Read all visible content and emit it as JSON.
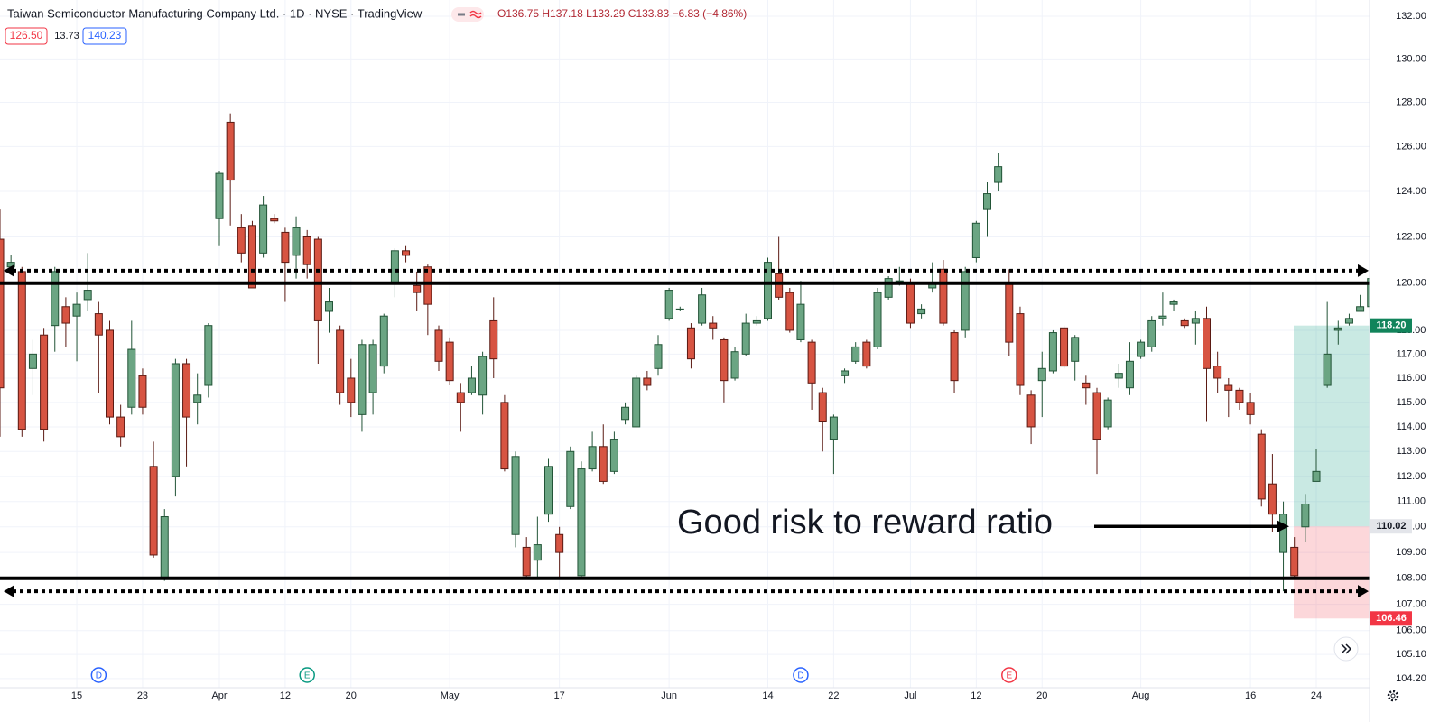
{
  "header": {
    "title": "Taiwan Semiconductor Manufacturing Company Ltd. · 1D · NYSE · TradingView",
    "ohlc": "O136.75 H137.18 L133.29 C133.83 −6.83 (−4.86%)",
    "values": [
      "126.50",
      "13.73",
      "140.23"
    ]
  },
  "chart_data": {
    "type": "candlestick",
    "log_scale": true,
    "grid": true,
    "up_color": "#6ba583",
    "down_color": "#d75442",
    "categories": [
      null,
      null,
      null,
      null,
      null,
      null,
      null,
      "15",
      null,
      null,
      null,
      null,
      null,
      "23",
      null,
      null,
      null,
      null,
      null,
      null,
      "Apr",
      null,
      null,
      null,
      null,
      null,
      "12",
      null,
      null,
      null,
      null,
      null,
      "20",
      null,
      null,
      null,
      null,
      null,
      null,
      null,
      null,
      "May",
      null,
      null,
      null,
      null,
      null,
      null,
      null,
      null,
      null,
      "17",
      null,
      null,
      null,
      null,
      null,
      null,
      null,
      null,
      null,
      "Jun",
      null,
      null,
      null,
      null,
      null,
      null,
      null,
      null,
      "14",
      null,
      null,
      null,
      null,
      null,
      "22",
      null,
      null,
      null,
      null,
      null,
      null,
      "Jul",
      null,
      null,
      null,
      null,
      null,
      "12",
      null,
      null,
      null,
      null,
      null,
      "20",
      null,
      null,
      null,
      null,
      null,
      null,
      null,
      null,
      "Aug",
      null,
      null,
      null,
      null,
      null,
      null,
      null,
      null,
      null,
      "16",
      null,
      null,
      null,
      null,
      null,
      "24",
      null,
      null,
      null,
      null,
      null
    ],
    "open": [
      121.9,
      120.7,
      120.5,
      116.4,
      117.8,
      118.2,
      119.0,
      118.6,
      119.3,
      118.7,
      118.0,
      114.4,
      114.8,
      116.1,
      112.4,
      108.0,
      112.0,
      116.6,
      115.0,
      115.7,
      122.8,
      127.1,
      122.4,
      122.5,
      121.3,
      122.8,
      122.2,
      121.2,
      122.0,
      121.9,
      118.8,
      118.0,
      116.0,
      114.5,
      115.4,
      116.5,
      120.0,
      121.4,
      119.9,
      120.7,
      118.0,
      117.5,
      115.4,
      115.4,
      115.3,
      118.4,
      115.0,
      109.7,
      109.2,
      108.7,
      110.5,
      109.7,
      110.8,
      108.1,
      112.3,
      113.2,
      112.2,
      114.3,
      114.0,
      116.0,
      116.4,
      118.5,
      118.9,
      118.1,
      118.3,
      118.3,
      117.6,
      116.0,
      117.0,
      118.3,
      118.5,
      120.4,
      119.6,
      117.6,
      117.5,
      115.4,
      113.5,
      116.1,
      116.7,
      117.5,
      117.3,
      119.4,
      120.1,
      120.0,
      118.7,
      119.8,
      120.6,
      117.9,
      118.0,
      121.1,
      123.2,
      124.4,
      120.0,
      118.7,
      115.3,
      115.9,
      116.3,
      118.1,
      116.7,
      115.8,
      115.4,
      114.0,
      116.0,
      115.6,
      116.9,
      117.3,
      118.5,
      119.1,
      118.4,
      118.3,
      118.5,
      116.5,
      115.7,
      115.5,
      115.0,
      113.7,
      111.7,
      109.0,
      109.2,
      110.0,
      111.8,
      115.7,
      118.0,
      118.3,
      118.8,
      119.0
    ],
    "high": [
      123.2,
      121.2,
      120.7,
      117.6,
      118.1,
      120.7,
      119.4,
      119.6,
      121.3,
      119.2,
      118.4,
      114.9,
      118.4,
      116.4,
      113.4,
      110.7,
      116.8,
      116.8,
      116.2,
      118.3,
      124.9,
      127.5,
      123.0,
      122.7,
      123.8,
      123.0,
      122.4,
      122.9,
      122.3,
      122.0,
      119.8,
      118.2,
      116.8,
      117.6,
      117.6,
      118.7,
      121.5,
      121.6,
      120.5,
      120.8,
      118.2,
      117.7,
      115.8,
      116.5,
      117.1,
      119.4,
      115.3,
      113.0,
      109.6,
      110.4,
      112.7,
      110.0,
      113.2,
      112.6,
      113.8,
      114.1,
      113.8,
      115.0,
      116.1,
      116.3,
      117.8,
      119.8,
      119.0,
      118.3,
      119.8,
      118.6,
      117.7,
      117.3,
      118.7,
      118.6,
      121.1,
      122.0,
      119.8,
      120.1,
      117.6,
      115.6,
      114.5,
      116.4,
      117.5,
      117.6,
      119.8,
      120.3,
      120.7,
      120.2,
      119.1,
      120.9,
      121.0,
      118.0,
      120.7,
      122.7,
      124.4,
      125.7,
      120.6,
      119.0,
      115.5,
      117.1,
      118.0,
      118.2,
      117.8,
      116.1,
      115.6,
      115.2,
      116.6,
      117.5,
      117.6,
      118.6,
      119.6,
      119.3,
      118.5,
      118.8,
      119.0,
      117.1,
      116.0,
      115.6,
      115.4,
      113.9,
      112.9,
      111.0,
      109.6,
      111.3,
      113.1,
      119.2,
      118.4,
      118.7,
      119.5,
      120.3
    ],
    "low": [
      113.6,
      120.5,
      113.6,
      115.3,
      113.4,
      117.1,
      117.3,
      116.7,
      118.8,
      115.4,
      114.1,
      113.2,
      114.5,
      114.5,
      108.8,
      107.9,
      111.2,
      112.4,
      114.1,
      115.2,
      121.6,
      122.5,
      120.9,
      119.8,
      121.1,
      122.6,
      119.2,
      120.2,
      120.2,
      116.6,
      117.9,
      114.9,
      114.4,
      113.8,
      114.5,
      116.2,
      119.4,
      120.9,
      118.8,
      117.8,
      116.3,
      115.7,
      113.8,
      115.3,
      114.5,
      116.0,
      112.2,
      109.2,
      108.0,
      108.0,
      110.2,
      108.0,
      110.7,
      108.0,
      112.2,
      111.7,
      112.1,
      114.1,
      114.0,
      115.5,
      116.1,
      118.4,
      118.8,
      116.4,
      118.2,
      117.6,
      115.0,
      115.9,
      116.9,
      118.2,
      118.4,
      119.3,
      117.9,
      117.5,
      114.7,
      113.0,
      112.1,
      115.8,
      116.6,
      116.4,
      117.2,
      119.3,
      119.9,
      118.1,
      118.5,
      119.6,
      118.2,
      115.4,
      117.7,
      120.9,
      122.0,
      124.0,
      116.9,
      115.3,
      113.3,
      114.4,
      116.2,
      116.4,
      115.9,
      114.9,
      112.1,
      113.9,
      115.6,
      115.3,
      116.8,
      117.1,
      118.2,
      118.8,
      118.1,
      117.4,
      114.2,
      115.4,
      114.4,
      114.7,
      114.1,
      110.8,
      109.8,
      107.5,
      108.0,
      109.4,
      111.8,
      115.6,
      117.4,
      118.2,
      118.8,
      118.9
    ],
    "close": [
      115.6,
      120.9,
      113.9,
      117.0,
      113.9,
      120.5,
      118.3,
      119.1,
      119.7,
      117.8,
      114.4,
      113.6,
      117.2,
      114.8,
      108.9,
      110.4,
      116.6,
      114.4,
      115.3,
      118.2,
      124.8,
      124.5,
      121.3,
      119.8,
      123.4,
      122.7,
      120.9,
      122.4,
      120.8,
      118.4,
      119.2,
      115.4,
      115.0,
      117.4,
      117.4,
      118.6,
      121.4,
      121.2,
      119.6,
      119.1,
      116.7,
      115.9,
      115.0,
      116.0,
      116.9,
      116.8,
      112.3,
      112.8,
      108.1,
      109.3,
      112.4,
      109.0,
      113.0,
      112.3,
      113.2,
      111.8,
      113.5,
      114.8,
      116.0,
      115.7,
      117.4,
      119.7,
      118.9,
      116.8,
      119.5,
      118.1,
      115.9,
      117.1,
      118.3,
      118.4,
      120.9,
      119.4,
      118.0,
      119.1,
      115.8,
      114.2,
      114.4,
      116.3,
      117.3,
      116.5,
      119.6,
      120.2,
      120.1,
      118.3,
      118.9,
      120.0,
      118.3,
      115.9,
      120.5,
      122.6,
      123.9,
      125.1,
      117.5,
      115.7,
      114.0,
      116.4,
      117.9,
      116.5,
      117.7,
      115.6,
      113.5,
      115.1,
      116.2,
      116.7,
      117.5,
      118.4,
      118.6,
      119.2,
      118.2,
      118.5,
      116.4,
      116.0,
      115.5,
      115.0,
      114.5,
      111.1,
      110.5,
      110.5,
      108.1,
      110.9,
      112.2,
      117.0,
      118.1,
      118.5,
      119.0,
      120.2
    ],
    "ylim": [
      103.86,
      132.77
    ],
    "yticks": [
      {
        "value": 132,
        "label": "132.00"
      },
      {
        "value": 130,
        "label": "130.00"
      },
      {
        "value": 128,
        "label": "128.00"
      },
      {
        "value": 126,
        "label": "126.00"
      },
      {
        "value": 124,
        "label": "124.00"
      },
      {
        "value": 122,
        "label": "122.00"
      },
      {
        "value": 120,
        "label": "120.00"
      },
      {
        "value": 118,
        "label": "118.00"
      },
      {
        "value": 117,
        "label": "117.00"
      },
      {
        "value": 116,
        "label": "116.00"
      },
      {
        "value": 115,
        "label": "115.00"
      },
      {
        "value": 114,
        "label": "114.00"
      },
      {
        "value": 113,
        "label": "113.00"
      },
      {
        "value": 112,
        "label": "112.00"
      },
      {
        "value": 111,
        "label": "111.00"
      },
      {
        "value": 110,
        "label": "110.00"
      },
      {
        "value": 109,
        "label": "109.00"
      },
      {
        "value": 108,
        "label": "108.00"
      },
      {
        "value": 107,
        "label": "107.00"
      },
      {
        "value": 106,
        "label": "106.00"
      },
      {
        "value": 105.1,
        "label": "105.10"
      },
      {
        "value": 104.2,
        "label": "104.20"
      }
    ],
    "levels": [
      120,
      108
    ],
    "range_arrows": [
      120.54,
      107.5
    ],
    "position": {
      "target": {
        "value": 118.2,
        "label": "118.20",
        "color": "#11845b"
      },
      "entry": {
        "value": 110.02,
        "label": "110.02",
        "color": "#e3e5ea"
      },
      "stop": {
        "value": 106.46,
        "label": "106.46",
        "color": "#f23645"
      }
    },
    "annotation": "Good risk to reward ratio",
    "events": [
      {
        "label": "D",
        "at": 9,
        "color": "#2962ff"
      },
      {
        "label": "E",
        "at": 28,
        "color": "#089981"
      },
      {
        "label": "D",
        "at": 73,
        "color": "#2962ff"
      },
      {
        "label": "E",
        "at": 92,
        "color": "#f23645"
      }
    ]
  }
}
